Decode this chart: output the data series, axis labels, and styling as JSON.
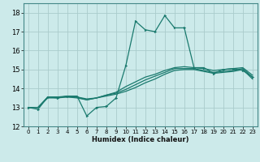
{
  "bg_color": "#cceaea",
  "grid_color": "#aacccc",
  "line_color": "#1a7a6e",
  "xlabel": "Humidex (Indice chaleur)",
  "xlim": [
    -0.5,
    23.5
  ],
  "ylim": [
    12,
    18.5
  ],
  "yticks": [
    12,
    13,
    14,
    15,
    16,
    17,
    18
  ],
  "xticks": [
    0,
    1,
    2,
    3,
    4,
    5,
    6,
    7,
    8,
    9,
    10,
    11,
    12,
    13,
    14,
    15,
    16,
    17,
    18,
    19,
    20,
    21,
    22,
    23
  ],
  "lines": [
    {
      "x": [
        0,
        1,
        2,
        3,
        4,
        5,
        6,
        7,
        8,
        9,
        10,
        11,
        12,
        13,
        14,
        15,
        16,
        17,
        18,
        19,
        20,
        21,
        22,
        23
      ],
      "y": [
        13.0,
        12.9,
        13.55,
        13.5,
        13.6,
        13.6,
        12.55,
        13.0,
        13.05,
        13.5,
        15.2,
        17.55,
        17.1,
        17.0,
        17.85,
        17.2,
        17.2,
        15.1,
        15.1,
        14.8,
        15.0,
        15.05,
        14.95,
        14.6
      ]
    },
    {
      "x": [
        0,
        1,
        2,
        3,
        4,
        5,
        6,
        7,
        8,
        9,
        10,
        11,
        12,
        13,
        14,
        15,
        16,
        17,
        18,
        19,
        20,
        21,
        22,
        23
      ],
      "y": [
        13.0,
        13.0,
        13.55,
        13.55,
        13.55,
        13.55,
        13.4,
        13.5,
        13.65,
        13.8,
        14.1,
        14.35,
        14.6,
        14.75,
        14.95,
        15.1,
        15.15,
        15.1,
        15.05,
        14.95,
        15.0,
        15.05,
        15.1,
        14.7
      ]
    },
    {
      "x": [
        0,
        1,
        2,
        3,
        4,
        5,
        6,
        7,
        8,
        9,
        10,
        11,
        12,
        13,
        14,
        15,
        16,
        17,
        18,
        19,
        20,
        21,
        22,
        23
      ],
      "y": [
        13.0,
        13.0,
        13.55,
        13.55,
        13.6,
        13.55,
        13.45,
        13.5,
        13.65,
        13.75,
        13.95,
        14.2,
        14.45,
        14.65,
        14.85,
        15.05,
        15.05,
        15.05,
        14.95,
        14.85,
        14.9,
        14.95,
        15.05,
        14.6
      ]
    },
    {
      "x": [
        0,
        1,
        2,
        3,
        4,
        5,
        6,
        7,
        8,
        9,
        10,
        11,
        12,
        13,
        14,
        15,
        16,
        17,
        18,
        19,
        20,
        21,
        22,
        23
      ],
      "y": [
        13.0,
        13.0,
        13.5,
        13.5,
        13.55,
        13.5,
        13.4,
        13.5,
        13.6,
        13.7,
        13.85,
        14.05,
        14.3,
        14.5,
        14.75,
        14.95,
        15.0,
        15.0,
        14.9,
        14.8,
        14.85,
        14.9,
        15.0,
        14.5
      ]
    }
  ]
}
